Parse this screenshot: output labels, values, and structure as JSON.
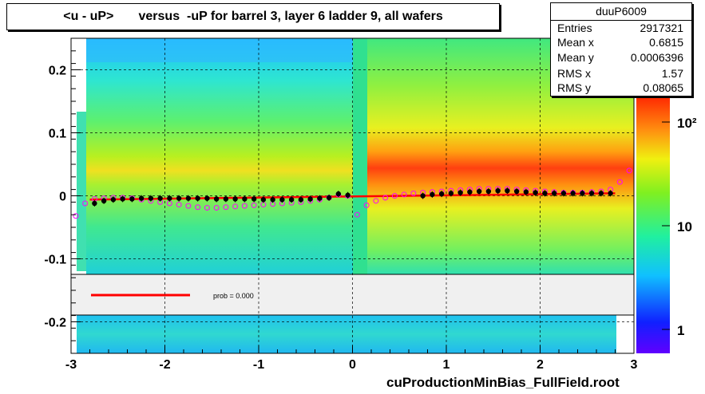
{
  "title": "<u - uP>       versus  -uP for barrel 3, layer 6 ladder 9, all wafers",
  "footer": "cuProductionMinBias_FullField.root",
  "stats": {
    "name": "duuP6009",
    "rows": [
      {
        "label": "Entries",
        "value": "2917321"
      },
      {
        "label": "Mean x",
        "value": "0.6815"
      },
      {
        "label": "Mean y",
        "value": "0.0006396"
      },
      {
        "label": "RMS x",
        "value": "1.57"
      },
      {
        "label": "RMS y",
        "value": "0.08065"
      }
    ]
  },
  "legend": {
    "fit_label": "prob = 0.000"
  },
  "colors": {
    "fit_line": "#ff0000",
    "profile_markers": "#000000",
    "open_markers": "#ff00ff",
    "legend_band": "#f0f0f0"
  },
  "chart_data": {
    "type": "heatmap",
    "xlim": [
      -3,
      3
    ],
    "ylim": [
      -0.25,
      0.25
    ],
    "x_ticks": [
      "-3",
      "-2",
      "-1",
      "0",
      "1",
      "2",
      "3"
    ],
    "y_ticks": [
      "-0.2",
      "-0.1",
      "0",
      "0.1",
      "0.2"
    ],
    "colorbar_ticks": [
      "1",
      "10",
      "10²"
    ],
    "colorbar_scale": "log",
    "grid": true,
    "profile": {
      "name": "profile",
      "x": [
        -2.75,
        -2.65,
        -2.55,
        -2.45,
        -2.35,
        -2.25,
        -2.15,
        -2.05,
        -1.95,
        -1.85,
        -1.75,
        -1.65,
        -1.55,
        -1.45,
        -1.35,
        -1.25,
        -1.15,
        -1.05,
        -0.95,
        -0.85,
        -0.75,
        -0.65,
        -0.55,
        -0.45,
        -0.35,
        -0.25,
        -0.15,
        -0.05,
        0.75,
        0.85,
        0.95,
        1.05,
        1.15,
        1.25,
        1.35,
        1.45,
        1.55,
        1.65,
        1.75,
        1.85,
        1.95,
        2.05,
        2.15,
        2.25,
        2.35,
        2.45,
        2.55,
        2.65,
        2.75
      ],
      "y": [
        -0.012,
        -0.008,
        -0.006,
        -0.005,
        -0.005,
        -0.004,
        -0.004,
        -0.004,
        -0.004,
        -0.004,
        -0.004,
        -0.004,
        -0.004,
        -0.005,
        -0.005,
        -0.005,
        -0.005,
        -0.005,
        -0.006,
        -0.006,
        -0.006,
        -0.006,
        -0.006,
        -0.005,
        -0.004,
        -0.003,
        0.003,
        0.001,
        0.0,
        0.002,
        0.003,
        0.004,
        0.005,
        0.006,
        0.007,
        0.007,
        0.008,
        0.008,
        0.007,
        0.006,
        0.005,
        0.004,
        0.004,
        0.004,
        0.004,
        0.004,
        0.004,
        0.004,
        0.004
      ]
    },
    "open_markers": {
      "name": "open-markers",
      "x": [
        -2.95,
        -2.85,
        -2.75,
        -2.65,
        -2.55,
        -2.45,
        -2.35,
        -2.25,
        -2.15,
        -2.05,
        -1.95,
        -1.85,
        -1.75,
        -1.65,
        -1.55,
        -1.45,
        -1.35,
        -1.25,
        -1.15,
        -1.05,
        -0.95,
        -0.85,
        -0.75,
        -0.65,
        -0.55,
        -0.45,
        -0.35,
        -0.25,
        -0.15,
        -0.05,
        0.05,
        0.15,
        0.25,
        0.35,
        0.45,
        0.55,
        0.65,
        0.75,
        0.85,
        0.95,
        1.05,
        1.15,
        1.25,
        1.35,
        1.45,
        1.55,
        1.65,
        1.75,
        1.85,
        1.95,
        2.05,
        2.15,
        2.25,
        2.35,
        2.45,
        2.55,
        2.65,
        2.75,
        2.85,
        2.95
      ],
      "y": [
        -0.032,
        -0.012,
        -0.005,
        -0.004,
        -0.003,
        -0.003,
        -0.004,
        -0.006,
        -0.008,
        -0.01,
        -0.012,
        -0.014,
        -0.016,
        -0.018,
        -0.019,
        -0.019,
        -0.018,
        -0.017,
        -0.016,
        -0.015,
        -0.014,
        -0.013,
        -0.012,
        -0.011,
        -0.01,
        -0.008,
        -0.006,
        -0.003,
        0.002,
        0.0,
        -0.03,
        -0.015,
        -0.008,
        -0.003,
        0.0,
        0.002,
        0.004,
        0.005,
        0.006,
        0.007,
        0.008,
        0.009,
        0.01,
        0.011,
        0.011,
        0.011,
        0.011,
        0.01,
        0.009,
        0.008,
        0.007,
        0.006,
        0.005,
        0.005,
        0.005,
        0.006,
        0.007,
        0.01,
        0.022,
        0.04
      ]
    },
    "fit": {
      "x": [
        -2.8,
        2.8
      ],
      "y": [
        -0.006,
        0.004
      ]
    }
  }
}
